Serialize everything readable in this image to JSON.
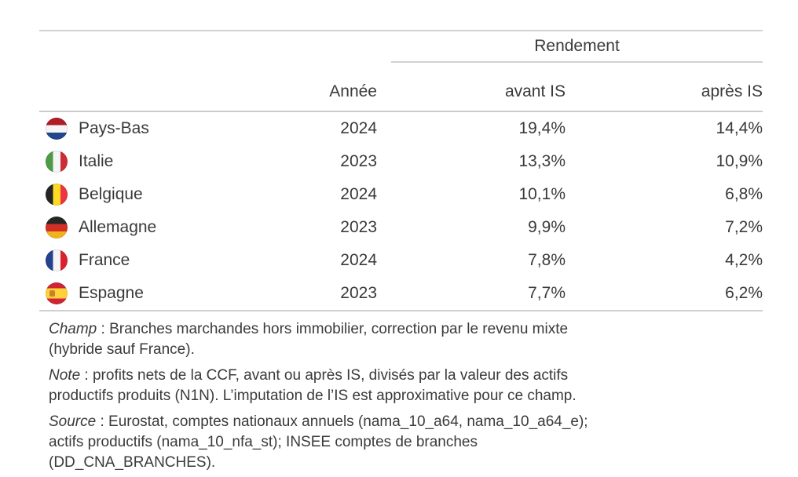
{
  "table": {
    "spanner": "Rendement",
    "columns": {
      "annee": "Année",
      "avant": "avant IS",
      "apres": "après IS"
    },
    "rows": [
      {
        "country": "Pays-Bas",
        "flag": "netherlands",
        "annee": "2024",
        "avant": "19,4%",
        "apres": "14,4%"
      },
      {
        "country": "Italie",
        "flag": "italy",
        "annee": "2023",
        "avant": "13,3%",
        "apres": "10,9%"
      },
      {
        "country": "Belgique",
        "flag": "belgium",
        "annee": "2024",
        "avant": "10,1%",
        "apres": "6,8%"
      },
      {
        "country": "Allemagne",
        "flag": "germany",
        "annee": "2023",
        "avant": "9,9%",
        "apres": "7,2%"
      },
      {
        "country": "France",
        "flag": "france",
        "annee": "2024",
        "avant": "7,8%",
        "apres": "4,2%"
      },
      {
        "country": "Espagne",
        "flag": "spain",
        "annee": "2023",
        "avant": "7,7%",
        "apres": "6,2%"
      }
    ]
  },
  "notes": [
    {
      "label": "Champ",
      "line1": " : Branches marchandes hors immobilier, correction par le revenu mixte",
      "line2": "(hybride sauf France)."
    },
    {
      "label": "Note",
      "line1": " : profits nets de la CCF, avant ou après IS, divisés par la valeur des actifs",
      "line2": "productifs produits (N1N). L’imputation de l’IS est approximative pour ce champ."
    },
    {
      "label": "Source",
      "line1": " : Eurostat, comptes nationaux annuels (nama_10_a64, nama_10_a64_e);",
      "line2": "actifs productifs (nama_10_nfa_st); INSEE comptes de branches",
      "line3": "(DD_CNA_BRANCHES)."
    }
  ],
  "colors": {
    "rule": "#d2d2d2",
    "text": "#3a3a3a"
  }
}
